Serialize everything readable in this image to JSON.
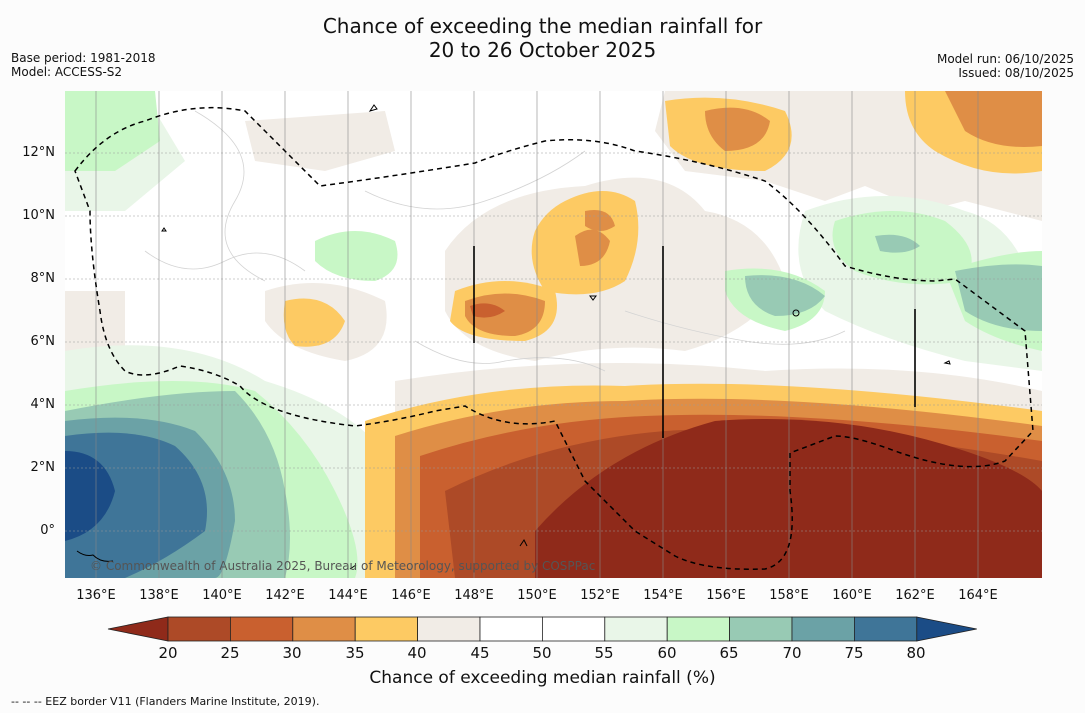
{
  "title": {
    "line1": "Chance of exceeding the median rainfall for",
    "line2": "20 to 26 October 2025"
  },
  "meta_left": {
    "base_period": "Base period: 1981-2018",
    "model": "Model: ACCESS-S2"
  },
  "meta_right": {
    "model_run": "Model run: 06/10/2025",
    "issued": "Issued: 08/10/2025"
  },
  "map": {
    "lat_labels": [
      "12°N",
      "10°N",
      "8°N",
      "6°N",
      "4°N",
      "2°N",
      "0°"
    ],
    "lon_labels": [
      "136°E",
      "138°E",
      "140°E",
      "142°E",
      "144°E",
      "146°E",
      "148°E",
      "150°E",
      "152°E",
      "154°E",
      "156°E",
      "158°E",
      "160°E",
      "162°E",
      "164°E"
    ],
    "copyright": "© Commonwealth of Australia 2025, Bureau of Meteorology, supported by COSPPac"
  },
  "colorbar": {
    "ticks": [
      "20",
      "25",
      "30",
      "35",
      "40",
      "45",
      "50",
      "55",
      "60",
      "65",
      "70",
      "75",
      "80"
    ],
    "colors": [
      "#8f2a1a",
      "#ad4a27",
      "#c9602f",
      "#df8e46",
      "#fdca63",
      "#f1ece6",
      "#ffffff",
      "#ffffff",
      "#e9f6e8",
      "#c8f7c6",
      "#98cab4",
      "#6ba2a6",
      "#3f7598",
      "#1b4c86"
    ],
    "title": "Chance of exceeding median rainfall (%)"
  },
  "source_note": "--  --  -- EEZ border V11 (Flanders Marine Institute, 2019)."
}
